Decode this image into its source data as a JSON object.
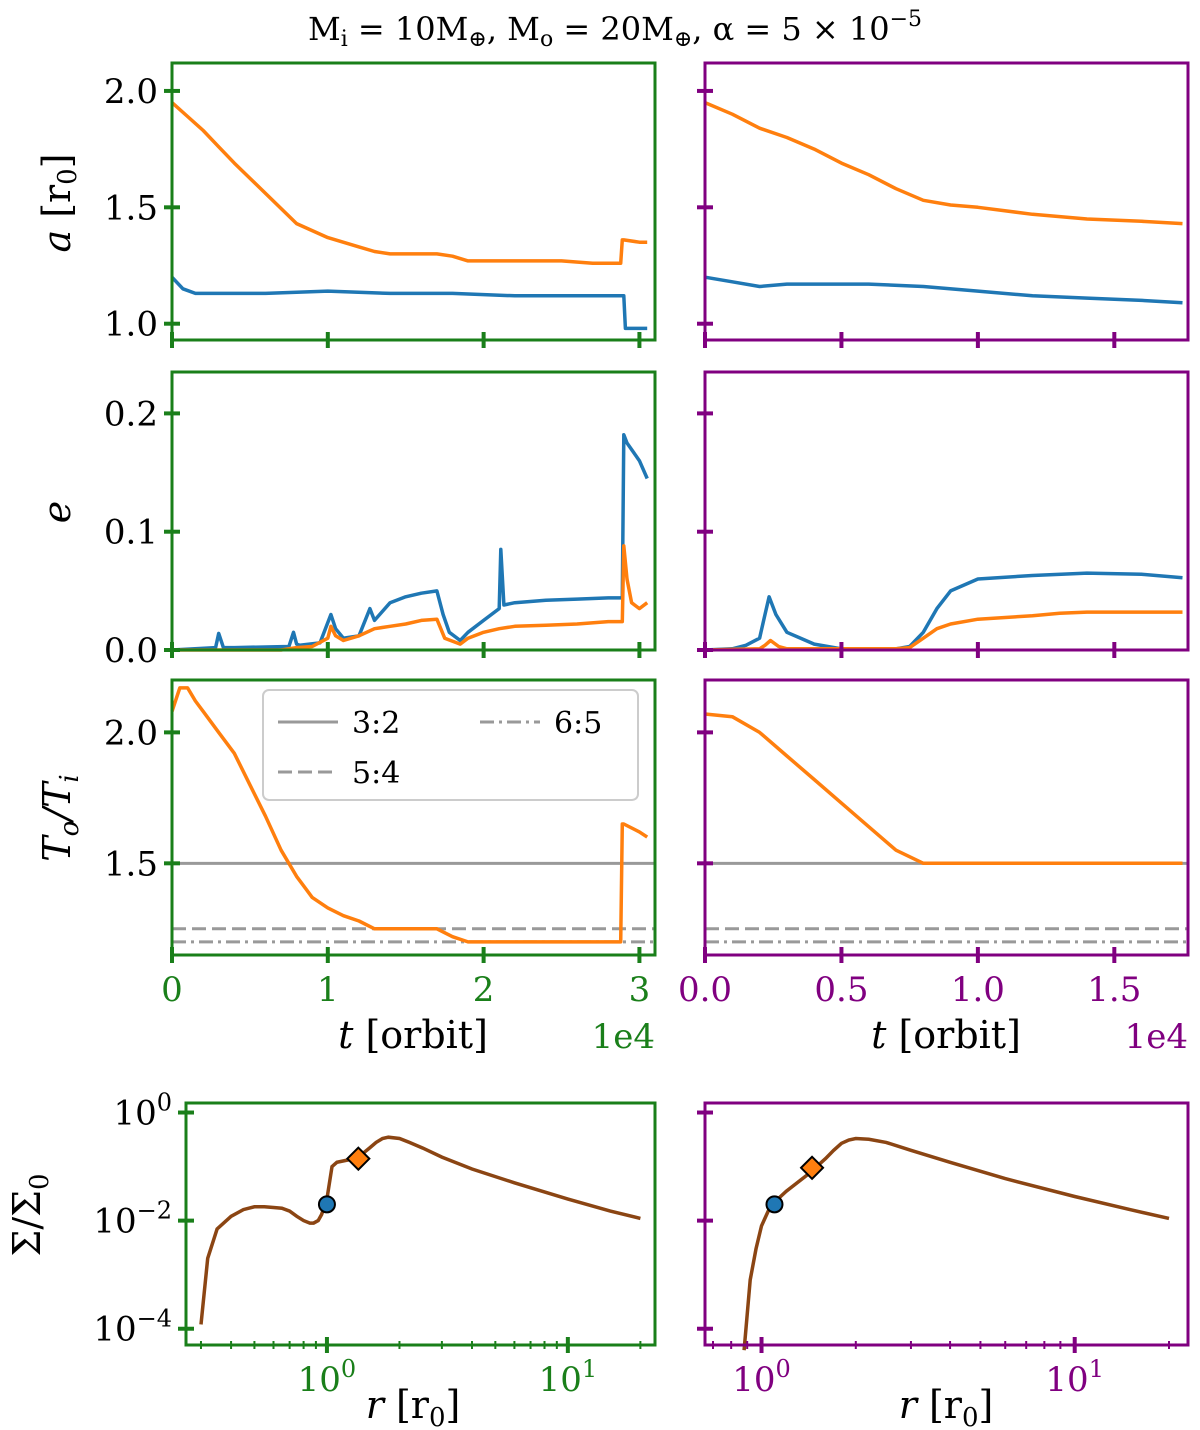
{
  "title": "M_i = 10M⊕, M_o = 20M⊕, α = 5 × 10⁻⁵",
  "colors": {
    "inner": "#1f77b4",
    "outer": "#ff7f0e",
    "profile": "#8b4513",
    "left_frame": "#1a7f1a",
    "right_frame": "#800080",
    "resonance": "#999999"
  },
  "legend": [
    "3:2",
    "5:4",
    "6:5"
  ],
  "chart_data": [
    {
      "type": "line",
      "panel": "left-a",
      "xlim": [
        0,
        31000
      ],
      "ylim": [
        0.93,
        2.12
      ],
      "ylabel": "a [r0]",
      "yticks": [
        1.0,
        1.5,
        2.0
      ],
      "series": [
        {
          "color": "outer",
          "x": [
            0,
            1000,
            2000,
            3000,
            4000,
            6000,
            8000,
            10000,
            12000,
            13000,
            14000,
            15000,
            17000,
            18000,
            19000,
            20000,
            21000,
            23000,
            25000,
            27000,
            28800,
            28900,
            29000,
            30000,
            30500
          ],
          "y": [
            1.95,
            1.89,
            1.83,
            1.76,
            1.69,
            1.56,
            1.43,
            1.37,
            1.33,
            1.31,
            1.3,
            1.3,
            1.3,
            1.29,
            1.27,
            1.27,
            1.27,
            1.27,
            1.27,
            1.26,
            1.26,
            1.36,
            1.36,
            1.35,
            1.35
          ]
        },
        {
          "color": "inner",
          "x": [
            0,
            700,
            1500,
            3000,
            6000,
            10000,
            14000,
            18000,
            22000,
            26000,
            28800,
            29000,
            29100,
            30000,
            30500
          ],
          "y": [
            1.2,
            1.15,
            1.13,
            1.13,
            1.13,
            1.14,
            1.13,
            1.13,
            1.12,
            1.12,
            1.12,
            1.12,
            0.98,
            0.98,
            0.98
          ]
        }
      ]
    },
    {
      "type": "line",
      "panel": "right-a",
      "xlim": [
        0,
        17700
      ],
      "ylim": [
        0.93,
        2.12
      ],
      "series": [
        {
          "color": "outer",
          "x": [
            0,
            1000,
            2000,
            3000,
            4000,
            5000,
            6000,
            7000,
            8000,
            9000,
            10000,
            12000,
            14000,
            16000,
            17500
          ],
          "y": [
            1.95,
            1.9,
            1.84,
            1.8,
            1.75,
            1.69,
            1.64,
            1.58,
            1.53,
            1.51,
            1.5,
            1.47,
            1.45,
            1.44,
            1.43
          ]
        },
        {
          "color": "inner",
          "x": [
            0,
            1000,
            2000,
            3000,
            4000,
            6000,
            8000,
            10000,
            12000,
            14000,
            16000,
            17500
          ],
          "y": [
            1.2,
            1.18,
            1.16,
            1.17,
            1.17,
            1.17,
            1.16,
            1.14,
            1.12,
            1.11,
            1.1,
            1.09
          ]
        }
      ]
    },
    {
      "type": "line",
      "panel": "left-e",
      "xlim": [
        0,
        31000
      ],
      "ylim": [
        0,
        0.235
      ],
      "ylabel": "e",
      "yticks": [
        0.0,
        0.1,
        0.2
      ],
      "series": [
        {
          "color": "inner",
          "x": [
            0,
            2800,
            3000,
            3300,
            4000,
            7500,
            7800,
            8000,
            8200,
            9500,
            10200,
            10500,
            11000,
            12000,
            12700,
            13000,
            14000,
            15000,
            16000,
            17000,
            17400,
            17800,
            18500,
            19000,
            20000,
            21000,
            21100,
            21300,
            22000,
            24000,
            26000,
            28000,
            28900,
            29000,
            29200,
            30000,
            30500
          ],
          "y": [
            0,
            0.002,
            0.014,
            0.002,
            0.002,
            0.003,
            0.015,
            0.005,
            0.004,
            0.006,
            0.03,
            0.018,
            0.01,
            0.012,
            0.035,
            0.025,
            0.04,
            0.045,
            0.048,
            0.05,
            0.03,
            0.015,
            0.008,
            0.015,
            0.025,
            0.035,
            0.085,
            0.038,
            0.04,
            0.042,
            0.043,
            0.044,
            0.044,
            0.182,
            0.175,
            0.16,
            0.145
          ]
        },
        {
          "color": "outer",
          "x": [
            0,
            7000,
            8000,
            9000,
            10000,
            10200,
            10500,
            11000,
            12000,
            13000,
            14000,
            15000,
            16000,
            17000,
            17500,
            18500,
            19000,
            20000,
            21000,
            22000,
            24000,
            26000,
            28000,
            28900,
            29000,
            29200,
            29500,
            30000,
            30500
          ],
          "y": [
            0,
            0,
            0.002,
            0.003,
            0.01,
            0.02,
            0.012,
            0.008,
            0.012,
            0.018,
            0.02,
            0.022,
            0.025,
            0.026,
            0.01,
            0.005,
            0.01,
            0.015,
            0.018,
            0.02,
            0.021,
            0.022,
            0.024,
            0.024,
            0.088,
            0.06,
            0.04,
            0.035,
            0.04
          ]
        }
      ]
    },
    {
      "type": "line",
      "panel": "right-e",
      "xlim": [
        0,
        17700
      ],
      "ylim": [
        0,
        0.235
      ],
      "series": [
        {
          "color": "inner",
          "x": [
            0,
            1000,
            1500,
            2000,
            2200,
            2350,
            2600,
            3000,
            4000,
            5000,
            6000,
            7000,
            7500,
            8000,
            8500,
            9000,
            10000,
            12000,
            14000,
            16000,
            17500
          ],
          "y": [
            0,
            0.001,
            0.004,
            0.01,
            0.03,
            0.045,
            0.03,
            0.015,
            0.005,
            0.001,
            0.001,
            0.001,
            0.003,
            0.015,
            0.035,
            0.05,
            0.06,
            0.063,
            0.065,
            0.064,
            0.061
          ]
        },
        {
          "color": "outer",
          "x": [
            0,
            2000,
            2200,
            2400,
            2700,
            3000,
            4000,
            6000,
            7000,
            7500,
            8000,
            8500,
            9000,
            10000,
            12000,
            13000,
            14000,
            16000,
            17500
          ],
          "y": [
            0,
            0.001,
            0.004,
            0.008,
            0.003,
            0.001,
            0.001,
            0.001,
            0.001,
            0.002,
            0.01,
            0.018,
            0.022,
            0.026,
            0.029,
            0.031,
            0.032,
            0.032,
            0.032
          ]
        }
      ]
    },
    {
      "type": "line",
      "panel": "left-T",
      "xlim": [
        0,
        31000
      ],
      "ylim": [
        1.15,
        2.2
      ],
      "ylabel": "To/Ti",
      "yticks": [
        1.5,
        2.0
      ],
      "xticks": [
        0,
        10000,
        20000,
        30000
      ],
      "xticklabels": [
        "0",
        "1",
        "2",
        "3"
      ],
      "xlabel": "t [orbit]",
      "offset_text": "1e4",
      "resonances": [
        1.5,
        1.25,
        1.2
      ],
      "series": [
        {
          "color": "outer",
          "x": [
            0,
            500,
            1000,
            1500,
            2000,
            3000,
            4000,
            5000,
            6000,
            7000,
            8000,
            9000,
            10000,
            11000,
            12000,
            13000,
            14000,
            15000,
            16000,
            17000,
            18000,
            19000,
            20000,
            21000,
            22000,
            24000,
            26000,
            28000,
            28800,
            28900,
            29000,
            30000,
            30500
          ],
          "y": [
            2.08,
            2.17,
            2.17,
            2.12,
            2.08,
            2.0,
            1.92,
            1.8,
            1.68,
            1.55,
            1.45,
            1.37,
            1.33,
            1.3,
            1.28,
            1.25,
            1.25,
            1.25,
            1.25,
            1.25,
            1.22,
            1.2,
            1.2,
            1.2,
            1.2,
            1.2,
            1.2,
            1.2,
            1.2,
            1.65,
            1.65,
            1.62,
            1.6
          ]
        }
      ]
    },
    {
      "type": "line",
      "panel": "right-T",
      "xlim": [
        0,
        17700
      ],
      "ylim": [
        1.15,
        2.2
      ],
      "xticks": [
        0,
        5000,
        10000,
        15000
      ],
      "xticklabels": [
        "0.0",
        "0.5",
        "1.0",
        "1.5"
      ],
      "xlabel": "t [orbit]",
      "offset_text": "1e4",
      "resonances": [
        1.5,
        1.25,
        1.2
      ],
      "series": [
        {
          "color": "outer",
          "x": [
            0,
            1000,
            2000,
            3000,
            4000,
            5000,
            6000,
            7000,
            8000,
            10000,
            12000,
            14000,
            16000,
            17500
          ],
          "y": [
            2.07,
            2.06,
            2.0,
            1.91,
            1.82,
            1.73,
            1.64,
            1.55,
            1.5,
            1.5,
            1.5,
            1.5,
            1.5,
            1.5
          ]
        }
      ]
    },
    {
      "type": "line",
      "panel": "left-sigma",
      "xscale": "log",
      "yscale": "log",
      "xlim": [
        0.26,
        23
      ],
      "ylim": [
        5e-05,
        1.5
      ],
      "ylabel": "Σ/Σ0",
      "xlabel": "r [r0]",
      "xticks": [
        1,
        10
      ],
      "xticklabels": [
        "10^0",
        "10^1"
      ],
      "yticks": [
        0.0001,
        0.01,
        1
      ],
      "yticklabels": [
        "10^-4",
        "10^-2",
        "10^0"
      ],
      "profile": {
        "x": [
          0.3,
          0.32,
          0.35,
          0.4,
          0.45,
          0.5,
          0.55,
          0.6,
          0.65,
          0.7,
          0.75,
          0.8,
          0.85,
          0.88,
          0.92,
          0.95,
          1.0,
          1.05,
          1.1,
          1.2,
          1.3,
          1.4,
          1.5,
          1.6,
          1.7,
          1.8,
          2.0,
          2.2,
          2.5,
          3.0,
          4.0,
          6.0,
          10.0,
          15.0,
          20.0
        ],
        "y": [
          0.00012,
          0.002,
          0.007,
          0.012,
          0.016,
          0.018,
          0.018,
          0.0175,
          0.017,
          0.015,
          0.012,
          0.01,
          0.009,
          0.009,
          0.01,
          0.013,
          0.025,
          0.1,
          0.12,
          0.13,
          0.14,
          0.17,
          0.22,
          0.28,
          0.33,
          0.35,
          0.33,
          0.28,
          0.22,
          0.15,
          0.09,
          0.05,
          0.025,
          0.015,
          0.011
        ]
      },
      "markers": [
        {
          "shape": "circle",
          "color": "inner",
          "x": 1.0,
          "y": 0.02
        },
        {
          "shape": "diamond",
          "color": "outer",
          "x": 1.35,
          "y": 0.14
        }
      ]
    },
    {
      "type": "line",
      "panel": "right-sigma",
      "xscale": "log",
      "yscale": "log",
      "xlim": [
        0.66,
        23
      ],
      "ylim": [
        5e-05,
        1.5
      ],
      "xlabel": "r [r0]",
      "xticks": [
        1,
        10
      ],
      "xticklabels": [
        "10^0",
        "10^1"
      ],
      "profile": {
        "x": [
          0.88,
          0.92,
          0.96,
          1.0,
          1.05,
          1.1,
          1.2,
          1.3,
          1.4,
          1.5,
          1.6,
          1.7,
          1.8,
          1.9,
          2.0,
          2.2,
          2.5,
          3.0,
          4.0,
          6.0,
          10.0,
          15.0,
          20.0
        ],
        "y": [
          4e-05,
          0.0008,
          0.003,
          0.008,
          0.015,
          0.022,
          0.035,
          0.05,
          0.07,
          0.1,
          0.14,
          0.2,
          0.27,
          0.31,
          0.33,
          0.32,
          0.28,
          0.2,
          0.12,
          0.06,
          0.028,
          0.016,
          0.011
        ]
      },
      "markers": [
        {
          "shape": "circle",
          "color": "inner",
          "x": 1.1,
          "y": 0.02
        },
        {
          "shape": "diamond",
          "color": "outer",
          "x": 1.45,
          "y": 0.095
        }
      ]
    }
  ]
}
